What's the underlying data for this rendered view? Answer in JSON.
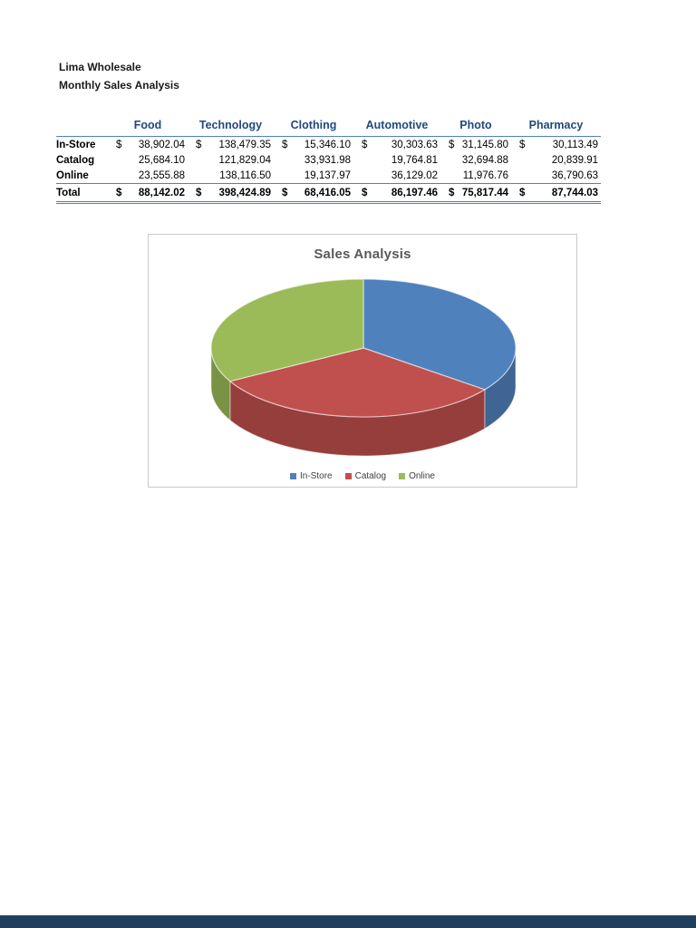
{
  "document": {
    "title": "Lima Wholesale",
    "subtitle": "Monthly Sales Analysis"
  },
  "table": {
    "dollar": "$",
    "columns": [
      "Food",
      "Technology",
      "Clothing",
      "Automotive",
      "Photo",
      "Pharmacy"
    ],
    "rows": [
      {
        "label": "In-Store",
        "currency": true,
        "values": [
          "38,902.04",
          "138,479.35",
          "15,346.10",
          "30,303.63",
          "31,145.80",
          "30,113.49"
        ]
      },
      {
        "label": "Catalog",
        "currency": false,
        "values": [
          "25,684.10",
          "121,829.04",
          "33,931.98",
          "19,764.81",
          "32,694.88",
          "20,839.91"
        ]
      },
      {
        "label": "Online",
        "currency": false,
        "values": [
          "23,555.88",
          "138,116.50",
          "19,137.97",
          "36,129.02",
          "11,976.76",
          "36,790.63"
        ]
      }
    ],
    "total": {
      "label": "Total",
      "currency": true,
      "values": [
        "88,142.02",
        "398,424.89",
        "68,416.05",
        "86,197.46",
        "75,817.44",
        "87,744.03"
      ]
    }
  },
  "chart_data": {
    "type": "pie",
    "style": "3d",
    "title": "Sales Analysis",
    "labels": [
      "In-Store",
      "Catalog",
      "Online"
    ],
    "values": [
      284290.41,
      254744.72,
      265706.76
    ],
    "percentages": [
      35.3,
      31.7,
      33.0
    ],
    "colors": [
      "#4F81BD",
      "#C0504D",
      "#9BBB59"
    ],
    "legend_position": "bottom",
    "start_angle_deg": 0,
    "direction": "clockwise"
  },
  "colors": {
    "header_text": "#1F497D",
    "table_border": "#4F81BD",
    "chart_title": "#595959",
    "chart_border": "#C9C9C9",
    "footer_bar": "#1F3F5F"
  }
}
